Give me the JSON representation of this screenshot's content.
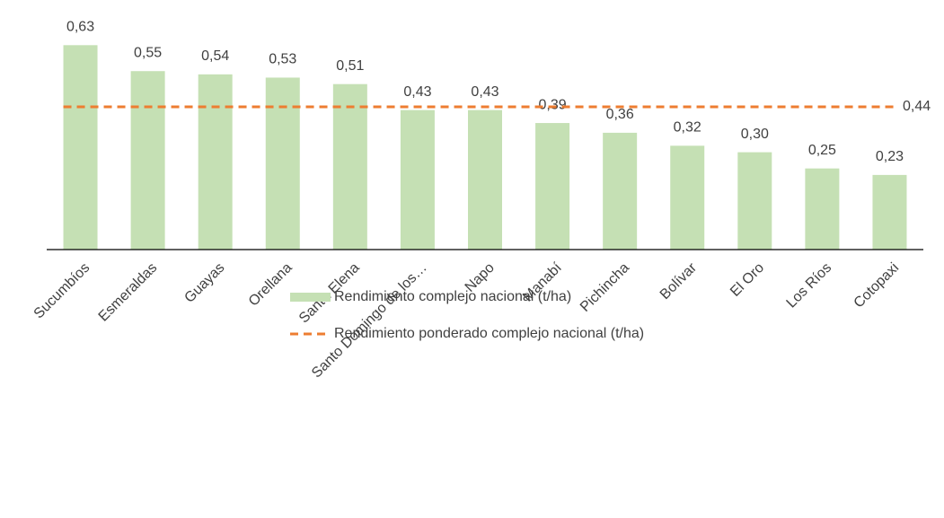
{
  "chart_data": {
    "type": "bar",
    "categories": [
      "Sucumbíos",
      "Esmeraldas",
      "Guayas",
      "Orellana",
      "Santa Elena",
      "Santo Domingo de los…",
      "Napo",
      "Manabí",
      "Pichincha",
      "Bolívar",
      "El Oro",
      "Los Ríos",
      "Cotopaxi"
    ],
    "series": [
      {
        "name": "Rendimiento complejo nacional (t/ha)",
        "color": "#c5e0b4",
        "values": [
          0.63,
          0.55,
          0.54,
          0.53,
          0.51,
          0.43,
          0.43,
          0.39,
          0.36,
          0.32,
          0.3,
          0.25,
          0.23
        ],
        "value_labels": [
          "0,63",
          "0,55",
          "0,54",
          "0,53",
          "0,51",
          "0,43",
          "0,43",
          "0,39",
          "0,36",
          "0,32",
          "0,30",
          "0,25",
          "0,23"
        ]
      }
    ],
    "lines": [
      {
        "name": "Rendimiento ponderado complejo nacional (t/ha)",
        "color": "#ed7d31",
        "value": 0.44,
        "value_label": "0,44"
      }
    ],
    "ylim": [
      0,
      0.7
    ]
  }
}
